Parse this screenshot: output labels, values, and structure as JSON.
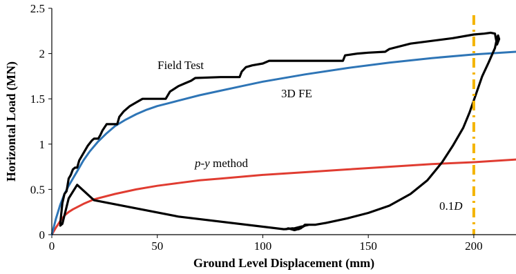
{
  "chart_data": {
    "type": "line",
    "title": "",
    "xlabel": "Ground Level Displacement (mm)",
    "ylabel": "Horizontal Load (MN)",
    "xlim": [
      0,
      220
    ],
    "ylim": [
      0,
      2.5
    ],
    "x_ticks": [
      0,
      50,
      100,
      150,
      200
    ],
    "y_ticks": [
      0,
      0.5,
      1,
      1.5,
      2,
      2.5
    ],
    "y_tick_labels": [
      "0",
      "0.5",
      "1",
      "1.5",
      "2",
      "2.5"
    ],
    "grid": false,
    "legend": "none",
    "series": [
      {
        "name": "Field Test",
        "color": "#000000",
        "points": [
          [
            4,
            0.12
          ],
          [
            5,
            0.35
          ],
          [
            6,
            0.45
          ],
          [
            7,
            0.48
          ],
          [
            8,
            0.62
          ],
          [
            9,
            0.66
          ],
          [
            10,
            0.72
          ],
          [
            11,
            0.74
          ],
          [
            12,
            0.74
          ],
          [
            13,
            0.82
          ],
          [
            15,
            0.9
          ],
          [
            17,
            0.98
          ],
          [
            19,
            1.04
          ],
          [
            20,
            1.06
          ],
          [
            22,
            1.06
          ],
          [
            23,
            1.1
          ],
          [
            24,
            1.15
          ],
          [
            26,
            1.22
          ],
          [
            29,
            1.22
          ],
          [
            31,
            1.22
          ],
          [
            32,
            1.3
          ],
          [
            34,
            1.36
          ],
          [
            37,
            1.42
          ],
          [
            40,
            1.46
          ],
          [
            43,
            1.5
          ],
          [
            50,
            1.5
          ],
          [
            54,
            1.5
          ],
          [
            56,
            1.58
          ],
          [
            60,
            1.64
          ],
          [
            63,
            1.67
          ],
          [
            66,
            1.7
          ],
          [
            68,
            1.73
          ],
          [
            80,
            1.74
          ],
          [
            89,
            1.74
          ],
          [
            90,
            1.8
          ],
          [
            92,
            1.85
          ],
          [
            95,
            1.87
          ],
          [
            100,
            1.89
          ],
          [
            103,
            1.92
          ],
          [
            110,
            1.92
          ],
          [
            120,
            1.92
          ],
          [
            138,
            1.92
          ],
          [
            139,
            1.98
          ],
          [
            145,
            2.0
          ],
          [
            150,
            2.01
          ],
          [
            158,
            2.02
          ],
          [
            160,
            2.05
          ],
          [
            170,
            2.11
          ],
          [
            190,
            2.17
          ],
          [
            200,
            2.21
          ],
          [
            205,
            2.22
          ],
          [
            208,
            2.23
          ],
          [
            210,
            2.22
          ],
          [
            211,
            2.1
          ],
          [
            212,
            2.16
          ],
          [
            211.5,
            2.2
          ],
          [
            211,
            2.17
          ],
          [
            210,
            2.06
          ],
          [
            207,
            1.9
          ],
          [
            204,
            1.75
          ],
          [
            201,
            1.55
          ],
          [
            198,
            1.35
          ],
          [
            195,
            1.18
          ],
          [
            190,
            0.98
          ],
          [
            185,
            0.8
          ],
          [
            178,
            0.6
          ],
          [
            170,
            0.45
          ],
          [
            160,
            0.32
          ],
          [
            150,
            0.24
          ],
          [
            140,
            0.18
          ],
          [
            130,
            0.13
          ],
          [
            125,
            0.11
          ],
          [
            120,
            0.11
          ],
          [
            118,
            0.07
          ],
          [
            115,
            0.05
          ],
          [
            112,
            0.07
          ],
          [
            111,
            0.06
          ],
          [
            114,
            0.07
          ],
          [
            117,
            0.06
          ],
          [
            120,
            0.1
          ],
          [
            122,
            0.11
          ],
          [
            120,
            0.1
          ],
          [
            115,
            0.07
          ],
          [
            110,
            0.06
          ],
          [
            60,
            0.2
          ],
          [
            20,
            0.38
          ],
          [
            12,
            0.55
          ],
          [
            8,
            0.4
          ],
          [
            5,
            0.12
          ],
          [
            4,
            0.1
          ]
        ]
      },
      {
        "name": "3D FE",
        "color": "#2e75b6",
        "points": [
          [
            0,
            0
          ],
          [
            2,
            0.18
          ],
          [
            4,
            0.33
          ],
          [
            6,
            0.45
          ],
          [
            8,
            0.54
          ],
          [
            10,
            0.62
          ],
          [
            12,
            0.7
          ],
          [
            15,
            0.82
          ],
          [
            18,
            0.92
          ],
          [
            22,
            1.03
          ],
          [
            26,
            1.12
          ],
          [
            30,
            1.2
          ],
          [
            35,
            1.27
          ],
          [
            40,
            1.33
          ],
          [
            45,
            1.38
          ],
          [
            50,
            1.42
          ],
          [
            55,
            1.45
          ],
          [
            60,
            1.48
          ],
          [
            70,
            1.54
          ],
          [
            80,
            1.59
          ],
          [
            90,
            1.64
          ],
          [
            100,
            1.69
          ],
          [
            120,
            1.77
          ],
          [
            140,
            1.84
          ],
          [
            160,
            1.9
          ],
          [
            180,
            1.95
          ],
          [
            200,
            1.99
          ],
          [
            220,
            2.02
          ]
        ]
      },
      {
        "name": "p-y method",
        "color": "#e03c31",
        "points": [
          [
            0,
            0
          ],
          [
            2,
            0.08
          ],
          [
            4,
            0.15
          ],
          [
            6,
            0.21
          ],
          [
            8,
            0.25
          ],
          [
            10,
            0.28
          ],
          [
            15,
            0.34
          ],
          [
            20,
            0.39
          ],
          [
            30,
            0.45
          ],
          [
            40,
            0.5
          ],
          [
            50,
            0.54
          ],
          [
            60,
            0.57
          ],
          [
            70,
            0.6
          ],
          [
            80,
            0.62
          ],
          [
            100,
            0.66
          ],
          [
            120,
            0.69
          ],
          [
            140,
            0.72
          ],
          [
            160,
            0.75
          ],
          [
            180,
            0.78
          ],
          [
            200,
            0.8
          ],
          [
            220,
            0.83
          ]
        ]
      }
    ],
    "reference_line": {
      "label": "0.1D",
      "x": 200,
      "color": "#f4b400",
      "style": "dash-dot"
    },
    "annotations": {
      "field_test": "Field Test",
      "fe_3d": "3D FE",
      "py_italic": "p-y",
      "py_rest": " method",
      "ref_prefix": "0.1",
      "ref_italic": "D"
    }
  }
}
